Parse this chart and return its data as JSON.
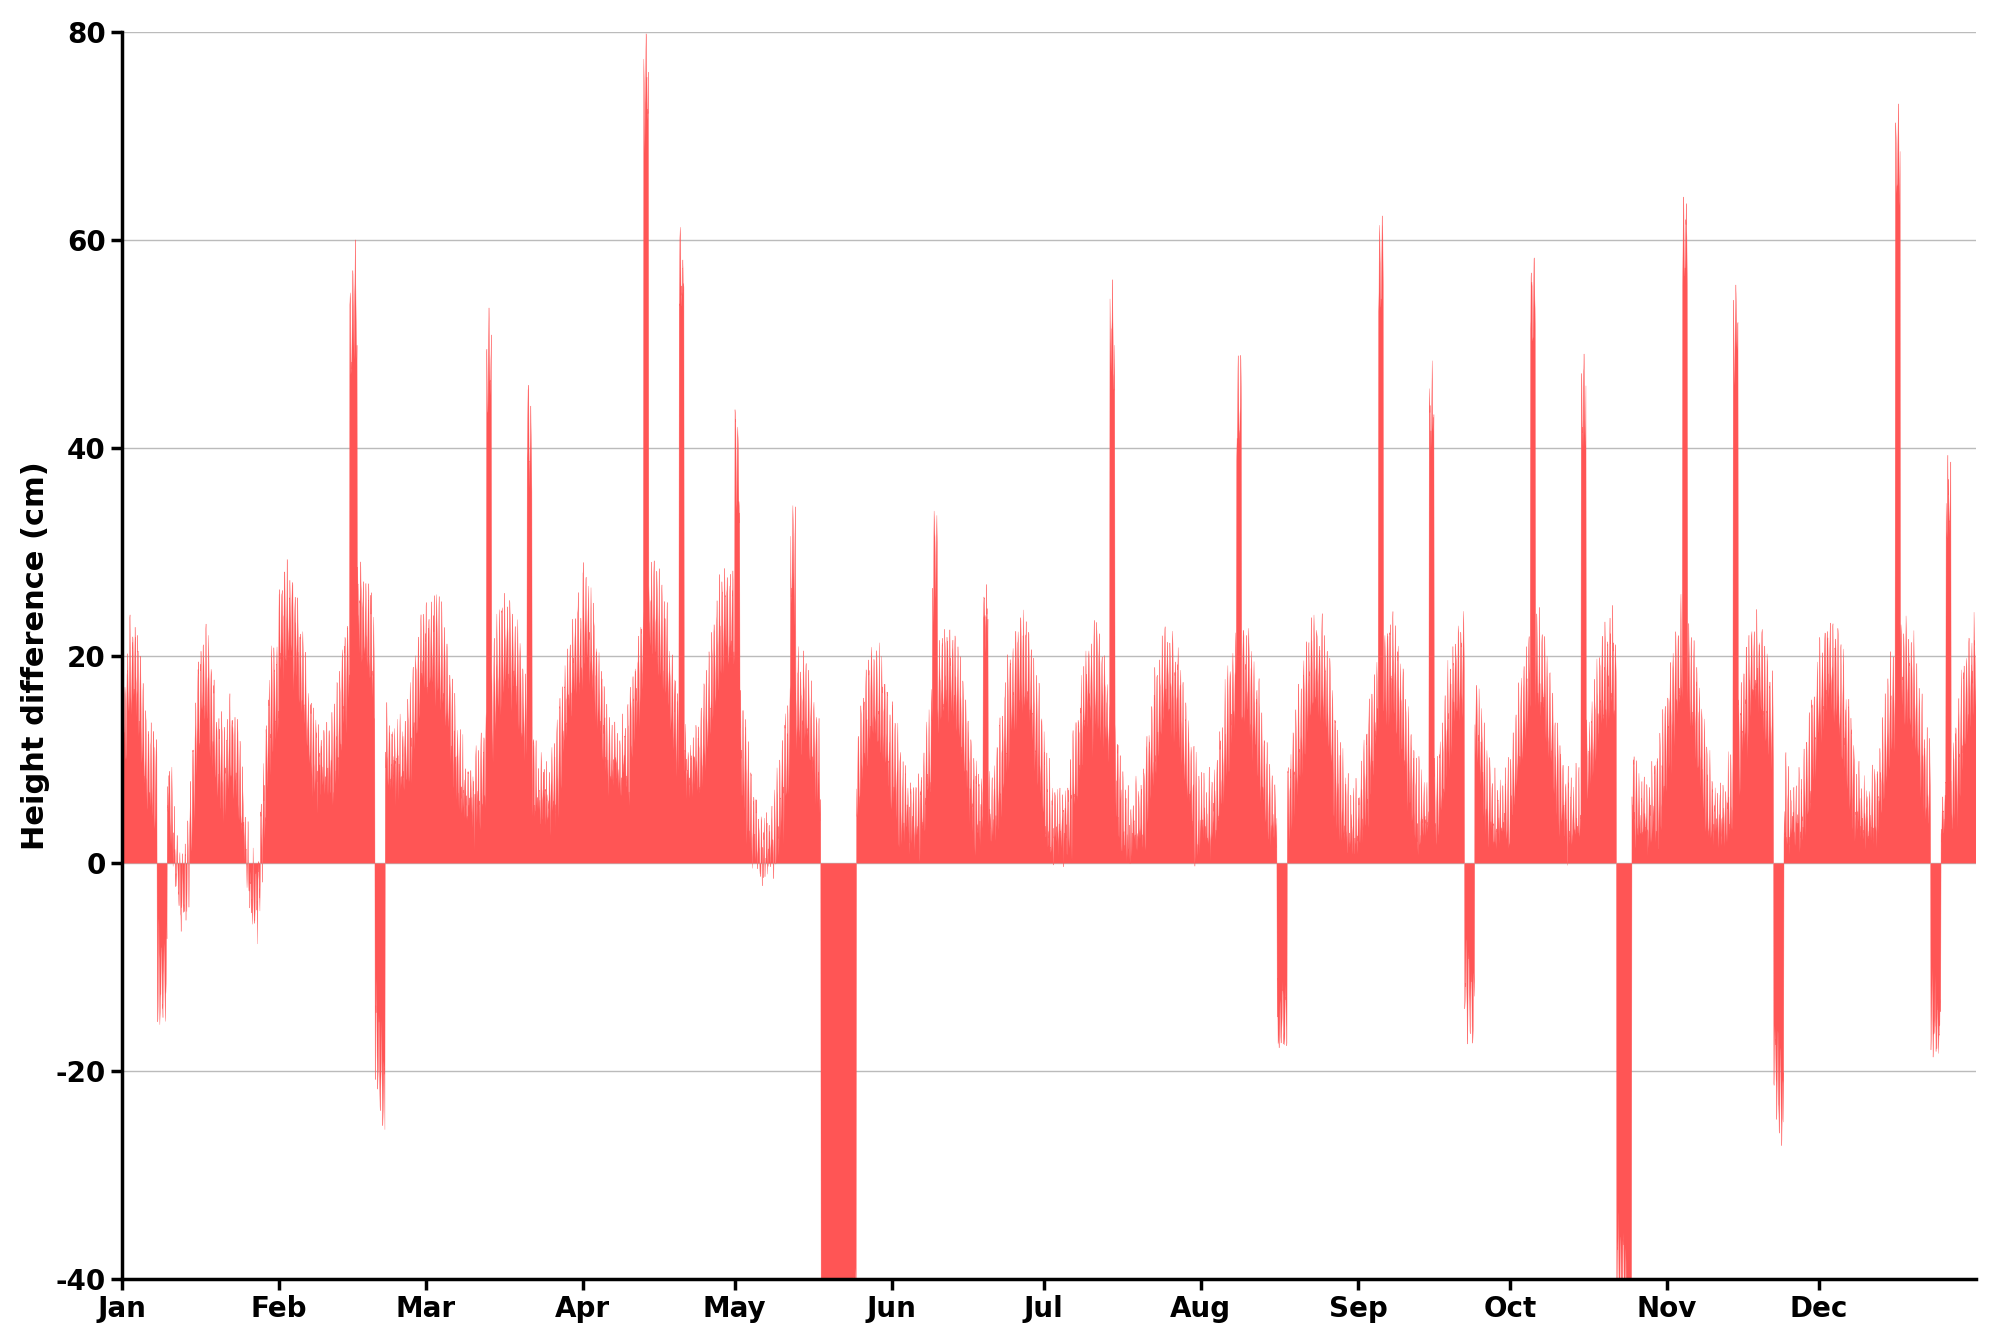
{
  "title": "",
  "ylabel": "Height difference (cm)",
  "ylim": [
    -40,
    80
  ],
  "yticks": [
    -40,
    -20,
    0,
    20,
    40,
    60,
    80
  ],
  "bar_color": "#FF5555",
  "background_color": "#ffffff",
  "grid_color": "#bbbbbb",
  "months": [
    "Jan",
    "Feb",
    "Mar",
    "Apr",
    "May",
    "Jun",
    "Jul",
    "Aug",
    "Sep",
    "Oct",
    "Nov",
    "Dec"
  ],
  "month_days": [
    0,
    31,
    60,
    91,
    121,
    152,
    182,
    213,
    244,
    274,
    305,
    335,
    366
  ],
  "ylabel_fontsize": 22,
  "tick_fontsize": 20,
  "tick_fontweight": "bold",
  "label_fontweight": "bold",
  "total_days": 366
}
